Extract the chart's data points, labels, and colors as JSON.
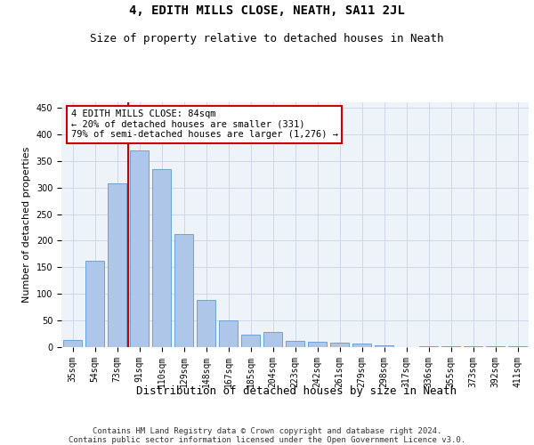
{
  "title": "4, EDITH MILLS CLOSE, NEATH, SA11 2JL",
  "subtitle": "Size of property relative to detached houses in Neath",
  "xlabel": "Distribution of detached houses by size in Neath",
  "ylabel": "Number of detached properties",
  "categories": [
    "35sqm",
    "54sqm",
    "73sqm",
    "91sqm",
    "110sqm",
    "129sqm",
    "148sqm",
    "167sqm",
    "185sqm",
    "204sqm",
    "223sqm",
    "242sqm",
    "261sqm",
    "279sqm",
    "298sqm",
    "317sqm",
    "336sqm",
    "355sqm",
    "373sqm",
    "392sqm",
    "411sqm"
  ],
  "values": [
    13,
    163,
    308,
    370,
    335,
    212,
    88,
    51,
    23,
    28,
    12,
    10,
    8,
    6,
    3,
    0,
    2,
    1,
    1,
    1,
    1
  ],
  "bar_color": "#aec6e8",
  "bar_edge_color": "#5b9bd5",
  "highlight_line_color": "#cc0000",
  "annotation_box_text": "4 EDITH MILLS CLOSE: 84sqm\n← 20% of detached houses are smaller (331)\n79% of semi-detached houses are larger (1,276) →",
  "annotation_box_color": "#cc0000",
  "annotation_box_fill": "#ffffff",
  "ylim": [
    0,
    460
  ],
  "yticks": [
    0,
    50,
    100,
    150,
    200,
    250,
    300,
    350,
    400,
    450
  ],
  "grid_color": "#d0d8e8",
  "background_color": "#eef2f9",
  "footer_text": "Contains HM Land Registry data © Crown copyright and database right 2024.\nContains public sector information licensed under the Open Government Licence v3.0.",
  "title_fontsize": 10,
  "subtitle_fontsize": 9,
  "xlabel_fontsize": 9,
  "ylabel_fontsize": 8,
  "tick_fontsize": 7,
  "annotation_fontsize": 7.5,
  "footer_fontsize": 6.5
}
